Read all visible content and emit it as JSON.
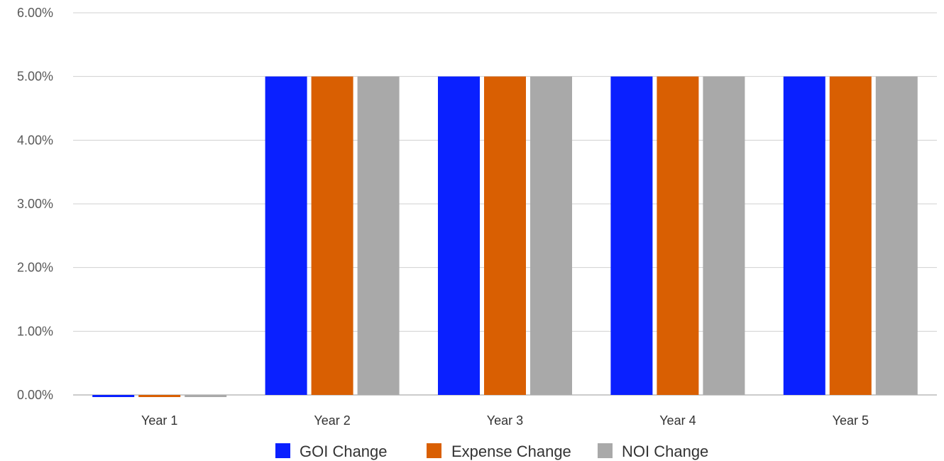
{
  "chart_data": {
    "type": "bar",
    "categories": [
      "Year 1",
      "Year 2",
      "Year 3",
      "Year 4",
      "Year 5"
    ],
    "series": [
      {
        "name": "GOI Change",
        "color": "#0a20ff",
        "values": [
          -0.03,
          5.0,
          5.0,
          5.0,
          5.0
        ]
      },
      {
        "name": "Expense Change",
        "color": "#d95f02",
        "values": [
          -0.03,
          5.0,
          5.0,
          5.0,
          5.0
        ]
      },
      {
        "name": "NOI Change",
        "color": "#a9a9a9",
        "values": [
          -0.03,
          5.0,
          5.0,
          5.0,
          5.0
        ]
      }
    ],
    "yticks": [
      "0.00%",
      "1.00%",
      "2.00%",
      "3.00%",
      "4.00%",
      "5.00%",
      "6.00%"
    ],
    "ylim": [
      0,
      6
    ],
    "grid": true,
    "legend_position": "bottom",
    "title": "",
    "xlabel": "",
    "ylabel": ""
  }
}
